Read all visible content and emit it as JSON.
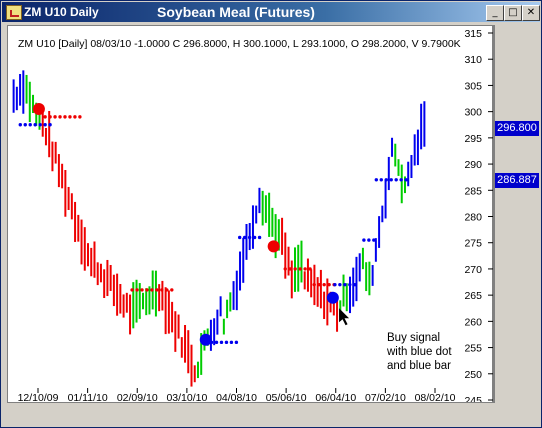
{
  "window": {
    "symbol_title": "ZM U10 Daily",
    "title": "Soybean Meal (Futures)",
    "controls": {
      "minimize": "_",
      "maximize": "□",
      "close": "✕"
    }
  },
  "info_line": "ZM U10 [Daily] 08/03/10 -1.0000 C 296.8000, H 300.1000, L 293.1000, O 298.2000, V 9.7900K",
  "annotation": {
    "line1": "Buy signal",
    "line2": "with blue dot",
    "line3": "and blue bar"
  },
  "price_labels": {
    "last": "296.800",
    "stop": "286.887"
  },
  "colors": {
    "bull": "#00cc00",
    "bear": "#ee0000",
    "signal": "#0000ee"
  },
  "chart_data": {
    "type": "bar",
    "ylim": [
      245,
      315
    ],
    "yticks": [
      245,
      250,
      255,
      260,
      265,
      270,
      275,
      280,
      285,
      290,
      295,
      300,
      305,
      310,
      315
    ],
    "xticks": [
      "12/10/09",
      "01/11/10",
      "02/09/10",
      "03/10/10",
      "04/08/10",
      "05/06/10",
      "06/04/10",
      "07/02/10",
      "08/02/10"
    ],
    "series": [
      {
        "legs": [
          {
            "color": "blue",
            "n": 4,
            "start": 303,
            "end": 305
          },
          {
            "color": "green",
            "n": 5,
            "start": 304,
            "end": 298
          },
          {
            "color": "red",
            "n": 16,
            "start": 298,
            "end": 271
          },
          {
            "color": "red",
            "n": 12,
            "start": 271,
            "end": 262
          },
          {
            "color": "green",
            "n": 8,
            "start": 262,
            "end": 266
          },
          {
            "color": "red",
            "n": 12,
            "start": 266,
            "end": 251
          },
          {
            "color": "green",
            "n": 4,
            "start": 252,
            "end": 257
          },
          {
            "color": "blue",
            "n": 4,
            "start": 258,
            "end": 262
          },
          {
            "color": "green",
            "n": 3,
            "start": 260,
            "end": 264
          },
          {
            "color": "blue",
            "n": 9,
            "start": 265,
            "end": 284
          },
          {
            "color": "green",
            "n": 6,
            "start": 283,
            "end": 276
          },
          {
            "color": "red",
            "n": 4,
            "start": 275,
            "end": 268
          },
          {
            "color": "green",
            "n": 3,
            "start": 269,
            "end": 271
          },
          {
            "color": "red",
            "n": 11,
            "start": 268,
            "end": 262
          },
          {
            "color": "green",
            "n": 3,
            "start": 263,
            "end": 266
          },
          {
            "color": "blue",
            "n": 4,
            "start": 266,
            "end": 270
          },
          {
            "color": "green",
            "n": 3,
            "start": 271,
            "end": 267
          },
          {
            "color": "blue",
            "n": 7,
            "start": 270,
            "end": 292
          },
          {
            "color": "green",
            "n": 4,
            "start": 292,
            "end": 285
          },
          {
            "color": "blue",
            "n": 6,
            "start": 288,
            "end": 298
          }
        ]
      }
    ],
    "signal_dots": [
      {
        "color": "red",
        "x_frac": 0.065,
        "y": 300.5
      },
      {
        "color": "blue",
        "x_frac": 0.468,
        "y": 256.5
      },
      {
        "color": "red",
        "x_frac": 0.632,
        "y": 274.3
      },
      {
        "color": "blue",
        "x_frac": 0.775,
        "y": 264.5
      }
    ],
    "stop_lines": [
      {
        "color": "blue",
        "from": 0.02,
        "to": 0.095,
        "y": 297.5
      },
      {
        "color": "red",
        "from": 0.08,
        "to": 0.17,
        "y": 299
      },
      {
        "color": "red",
        "from": 0.29,
        "to": 0.39,
        "y": 266
      },
      {
        "color": "blue",
        "from": 0.47,
        "to": 0.55,
        "y": 256
      },
      {
        "color": "blue",
        "from": 0.55,
        "to": 0.6,
        "y": 276
      },
      {
        "color": "red",
        "from": 0.66,
        "to": 0.73,
        "y": 270
      },
      {
        "color": "red",
        "from": 0.73,
        "to": 0.78,
        "y": 267
      },
      {
        "color": "blue",
        "from": 0.78,
        "to": 0.83,
        "y": 267
      },
      {
        "color": "blue",
        "from": 0.85,
        "to": 0.88,
        "y": 275.5
      },
      {
        "color": "blue",
        "from": 0.88,
        "to": 0.96,
        "y": 287
      }
    ]
  }
}
